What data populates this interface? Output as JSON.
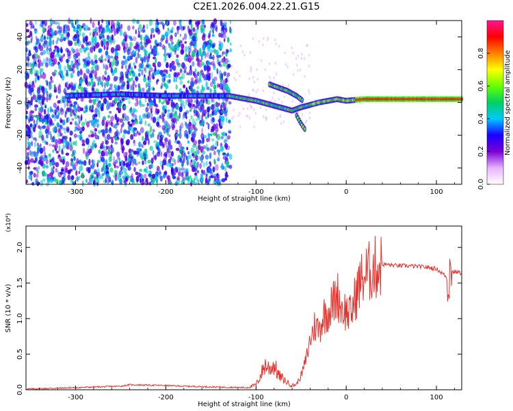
{
  "title": "C2E1.2026.004.22.21.G15",
  "chart_data": [
    {
      "type": "heatmap",
      "xlabel": "Height of straight line (km)",
      "ylabel": "Frequency (Hz)",
      "xlim": [
        -355,
        128
      ],
      "ylim": [
        -50,
        50
      ],
      "xticks": [
        -300,
        -200,
        -100,
        0,
        100
      ],
      "yticks": [
        -40,
        -20,
        0,
        20,
        40
      ],
      "colorbar": {
        "label": "Normalized spectral amplitude",
        "range": [
          0.0,
          1.0
        ],
        "ticks": [
          0.0,
          0.2,
          0.4,
          0.6,
          0.8
        ],
        "tick_labels": [
          "0.0",
          "0.2",
          "0.4",
          "0.6",
          "0.8"
        ],
        "colors": [
          "#ffffff",
          "#e6b3ff",
          "#7a00d6",
          "#1a00ff",
          "#00c8ff",
          "#00d060",
          "#66ff00",
          "#ffff00",
          "#ff8000",
          "#ff0000",
          "#ff1493"
        ]
      },
      "features": [
        {
          "name": "main tone",
          "x": [
            -310,
            -250,
            -200,
            -130,
            -100,
            -80,
            -60,
            -50,
            -30,
            -10,
            0,
            20,
            60,
            100,
            128
          ],
          "y": [
            4,
            5,
            4,
            4,
            1,
            -2,
            -5,
            -3,
            0,
            2,
            1,
            2,
            2,
            2,
            2
          ]
        },
        {
          "name": "upper branch",
          "x": [
            -85,
            -75,
            -65,
            -55,
            -48
          ],
          "y": [
            11,
            9,
            7,
            4,
            1
          ]
        },
        {
          "name": "lower branch",
          "x": [
            -55,
            -50,
            -45
          ],
          "y": [
            -8,
            -13,
            -17
          ]
        }
      ]
    },
    {
      "type": "line",
      "title": "",
      "xlabel": "Height of straight line (km)",
      "ylabel": "SNR (10 * v/v)",
      "y_multiplier": "(x10⁴)",
      "xlim": [
        -355,
        128
      ],
      "ylim": [
        0,
        2.3
      ],
      "xticks": [
        -300,
        -200,
        -100,
        0,
        100
      ],
      "yticks": [
        0.0,
        0.5,
        1.0,
        1.5,
        2.0
      ],
      "ytick_labels": [
        "0.0",
        "0.5",
        "1.0",
        "1.5",
        "2.0"
      ],
      "color": "#e8302a",
      "series": [
        {
          "name": "SNR",
          "x": [
            -355,
            -300,
            -250,
            -240,
            -200,
            -180,
            -150,
            -110,
            -100,
            -95,
            -90,
            -85,
            -80,
            -75,
            -70,
            -65,
            -60,
            -55,
            -50,
            -45,
            -40,
            -35,
            -30,
            -25,
            -20,
            -15,
            -10,
            -5,
            0,
            5,
            10,
            15,
            20,
            25,
            30,
            35,
            40,
            45,
            50,
            60,
            70,
            80,
            90,
            100,
            105,
            110,
            113,
            115,
            118,
            120,
            128
          ],
          "y": [
            0.01,
            0.03,
            0.05,
            0.07,
            0.06,
            0.05,
            0.04,
            0.03,
            0.07,
            0.2,
            0.35,
            0.3,
            0.35,
            0.2,
            0.15,
            0.1,
            0.06,
            0.08,
            0.2,
            0.4,
            0.7,
            0.9,
            0.85,
            1.05,
            1.1,
            1.2,
            1.35,
            1.15,
            1.1,
            1.05,
            1.3,
            1.5,
            1.6,
            1.65,
            1.7,
            1.72,
            1.76,
            1.76,
            1.75,
            1.74,
            1.74,
            1.73,
            1.72,
            1.7,
            1.65,
            1.6,
            1.5,
            1.7,
            1.65,
            1.66,
            1.64
          ]
        }
      ]
    }
  ]
}
